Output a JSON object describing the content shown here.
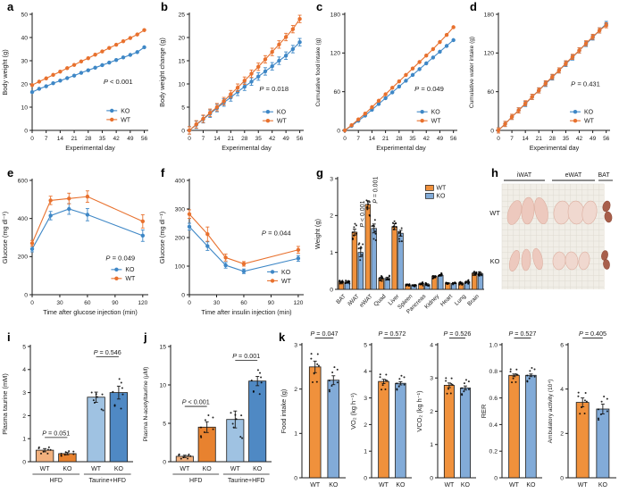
{
  "colors": {
    "wt_orange": "#E8712E",
    "ko_blue": "#3E87C6",
    "bar_wt_orange": "#F0913C",
    "bar_ko_blue": "#82ABD8",
    "hfd_wt_light_orange": "#F2B17E",
    "hfd_ko_orange": "#E8822F",
    "taurine_wt_light_blue": "#9FC2E2",
    "taurine_ko_blue": "#4F89C4",
    "axis": "#1a1a1a"
  },
  "chart_data": [
    {
      "panel": "a",
      "type": "line",
      "xlabel": "Experimental day",
      "ylabel": "Body weight (g)",
      "xlim": [
        0,
        58
      ],
      "ylim": [
        0,
        50
      ],
      "xticks": [
        0,
        7,
        14,
        21,
        28,
        35,
        42,
        49,
        56
      ],
      "yticks": [
        0,
        10,
        20,
        30,
        40,
        50
      ],
      "x": [
        0,
        3.5,
        7,
        10.5,
        14,
        17.5,
        21,
        24.5,
        28,
        31.5,
        35,
        38.5,
        42,
        45.5,
        49,
        52.5,
        56
      ],
      "series": [
        {
          "name": "KO",
          "color": "#3E87C6",
          "err": 0.8,
          "values": [
            16.5,
            17.9,
            19.0,
            20.3,
            21.4,
            22.5,
            23.6,
            24.8,
            25.9,
            27.0,
            28.1,
            29.2,
            30.3,
            31.4,
            32.5,
            33.7,
            35.8
          ]
        },
        {
          "name": "WT",
          "color": "#E8712E",
          "err": 0.8,
          "values": [
            19.5,
            21.0,
            22.4,
            23.9,
            25.3,
            26.8,
            28.2,
            29.7,
            31.1,
            32.6,
            34.0,
            35.5,
            36.9,
            38.4,
            39.8,
            41.3,
            43.2
          ]
        }
      ],
      "p_label": "P < 0.001",
      "p_pos": [
        0.74,
        0.6
      ],
      "legend_pos": [
        0.64,
        0.83
      ]
    },
    {
      "panel": "b",
      "type": "line",
      "xlabel": "Experimental day",
      "ylabel": "Body weight change (g)",
      "xlim": [
        0,
        58
      ],
      "ylim": [
        0,
        25
      ],
      "xticks": [
        0,
        7,
        14,
        21,
        28,
        35,
        42,
        49,
        56
      ],
      "yticks": [
        0,
        5,
        10,
        15,
        20,
        25
      ],
      "x": [
        0,
        3.5,
        7,
        10.5,
        14,
        17.5,
        21,
        24.5,
        28,
        31.5,
        35,
        38.5,
        42,
        45.5,
        49,
        52.5,
        56
      ],
      "series": [
        {
          "name": "KO",
          "color": "#3E87C6",
          "err": 0.8,
          "values": [
            0,
            1.2,
            2.4,
            3.6,
            4.8,
            6.0,
            7.1,
            8.3,
            9.4,
            10.5,
            11.6,
            12.7,
            13.8,
            15.0,
            16.1,
            17.5,
            19.0
          ]
        },
        {
          "name": "WT",
          "color": "#E8712E",
          "err": 0.8,
          "values": [
            0,
            1.3,
            2.5,
            3.8,
            5.0,
            6.3,
            7.8,
            9.2,
            10.7,
            12.2,
            13.7,
            15.3,
            16.9,
            18.5,
            20.1,
            21.8,
            24.0
          ]
        }
      ],
      "p_label": "P = 0.018",
      "p_pos": [
        0.74,
        0.66
      ],
      "legend_pos": [
        0.64,
        0.84
      ]
    },
    {
      "panel": "c",
      "type": "line",
      "xlabel": "Experimental day",
      "ylabel": "Cumulative food intake (g)",
      "xlim": [
        0,
        58
      ],
      "ylim": [
        0,
        180
      ],
      "xticks": [
        0,
        7,
        14,
        21,
        28,
        35,
        42,
        49,
        56
      ],
      "yticks": [
        0,
        60,
        120,
        180
      ],
      "x": [
        0,
        3.5,
        7,
        10.5,
        14,
        17.5,
        21,
        24.5,
        28,
        31.5,
        35,
        38.5,
        42,
        45.5,
        49,
        52.5,
        56
      ],
      "series": [
        {
          "name": "KO",
          "color": "#3E87C6",
          "err": 3,
          "values": [
            0,
            7,
            15,
            23,
            32,
            41,
            50,
            59,
            68,
            77,
            86,
            95,
            104,
            113,
            122,
            131,
            140
          ]
        },
        {
          "name": "WT",
          "color": "#E8712E",
          "err": 3,
          "values": [
            0,
            8,
            17,
            26,
            36,
            46,
            56,
            66,
            76,
            86,
            96,
            106,
            116,
            126,
            137,
            148,
            160
          ]
        }
      ],
      "p_label": "P = 0.049",
      "p_pos": [
        0.75,
        0.66
      ],
      "legend_pos": [
        0.64,
        0.84
      ]
    },
    {
      "panel": "d",
      "type": "line",
      "xlabel": "Experimental day",
      "ylabel": "Cumulative water intake (g)",
      "xlim": [
        0,
        58
      ],
      "ylim": [
        0,
        180
      ],
      "xticks": [
        0,
        7,
        14,
        21,
        28,
        35,
        42,
        49,
        56
      ],
      "yticks": [
        0,
        60,
        120,
        180
      ],
      "x": [
        0,
        3.5,
        7,
        10.5,
        14,
        17.5,
        21,
        24.5,
        28,
        31.5,
        35,
        38.5,
        42,
        45.5,
        49,
        52.5,
        56
      ],
      "series": [
        {
          "name": "KO",
          "color": "#3E87C6",
          "err": 4,
          "values": [
            0,
            10,
            21,
            31,
            41,
            52,
            62,
            72,
            82,
            93,
            103,
            113,
            124,
            134,
            144,
            155,
            165
          ]
        },
        {
          "name": "WT",
          "color": "#E8712E",
          "err": 4,
          "values": [
            0,
            10,
            21,
            31,
            42,
            52,
            62,
            73,
            83,
            93,
            104,
            114,
            124,
            135,
            145,
            155,
            163
          ]
        }
      ],
      "p_label": "P = 0.431",
      "p_pos": [
        0.78,
        0.62
      ],
      "legend_pos": [
        0.64,
        0.84
      ]
    },
    {
      "panel": "e",
      "type": "line",
      "xlabel": "Time after glucose injection (min)",
      "ylabel": "Glucose (mg dl⁻¹)",
      "xlim": [
        0,
        126
      ],
      "ylim": [
        0,
        600
      ],
      "xticks": [
        0,
        30,
        60,
        90,
        120
      ],
      "yticks": [
        0,
        200,
        400,
        600
      ],
      "x": [
        0,
        20,
        40,
        60,
        120
      ],
      "series": [
        {
          "name": "KO",
          "color": "#3E87C6",
          "errs": [
            15,
            22,
            28,
            32,
            30
          ],
          "values": [
            240,
            415,
            450,
            420,
            310
          ]
        },
        {
          "name": "WT",
          "color": "#E8712E",
          "errs": [
            15,
            22,
            28,
            30,
            35
          ],
          "values": [
            270,
            495,
            505,
            515,
            385
          ]
        }
      ],
      "p_label": "P = 0.049",
      "p_pos": [
        0.76,
        0.7
      ],
      "legend_pos": [
        0.68,
        0.78
      ]
    },
    {
      "panel": "f",
      "type": "line",
      "xlabel": "Time after insulin injection (min)",
      "ylabel": "Glucose (mg dl⁻¹)",
      "xlim": [
        0,
        126
      ],
      "ylim": [
        0,
        400
      ],
      "xticks": [
        0,
        30,
        60,
        90,
        120
      ],
      "yticks": [
        0,
        100,
        200,
        300,
        400
      ],
      "x": [
        0,
        20,
        40,
        60,
        120
      ],
      "series": [
        {
          "name": "KO",
          "color": "#3E87C6",
          "errs": [
            12,
            15,
            10,
            8,
            10
          ],
          "values": [
            238,
            170,
            103,
            82,
            127
          ]
        },
        {
          "name": "WT",
          "color": "#E8712E",
          "errs": [
            15,
            25,
            12,
            8,
            12
          ],
          "values": [
            282,
            212,
            130,
            108,
            157
          ]
        }
      ],
      "p_label": "P = 0.044",
      "p_pos": [
        0.76,
        0.48
      ],
      "legend_pos": [
        0.68,
        0.8
      ]
    },
    {
      "panel": "g",
      "type": "bar",
      "ylabel": "Weight (g)",
      "ylim": [
        0,
        3
      ],
      "yticks": [
        0,
        1,
        2,
        3
      ],
      "categories": [
        "BAT",
        "iWAT",
        "eWAT",
        "Quad",
        "Liver",
        "Spleen",
        "Pancreas",
        "Kidney",
        "Heart",
        "Lung",
        "Brain"
      ],
      "series": [
        {
          "name": "WT",
          "color": "#F0913C",
          "values": [
            0.2,
            1.55,
            2.3,
            0.3,
            1.7,
            0.12,
            0.15,
            0.35,
            0.17,
            0.17,
            0.44
          ],
          "errs": [
            0.02,
            0.08,
            0.1,
            0.03,
            0.08,
            0.01,
            0.02,
            0.02,
            0.01,
            0.02,
            0.02
          ]
        },
        {
          "name": "KO",
          "color": "#82ABD8",
          "values": [
            0.2,
            1.0,
            1.65,
            0.3,
            1.52,
            0.1,
            0.13,
            0.38,
            0.16,
            0.2,
            0.42
          ],
          "errs": [
            0.02,
            0.12,
            0.12,
            0.03,
            0.08,
            0.01,
            0.02,
            0.02,
            0.01,
            0.02,
            0.02
          ]
        }
      ],
      "rotate_xlabels": true,
      "vlabels": [
        {
          "cat": 1,
          "label": "P < 0.001"
        },
        {
          "cat": 2,
          "label": "P = 0.001"
        }
      ],
      "legend": {
        "pos": [
          0.6,
          0.1
        ],
        "entries": [
          {
            "name": "WT",
            "color": "#F0913C"
          },
          {
            "name": "KO",
            "color": "#82ABD8"
          }
        ]
      },
      "dots": true
    },
    {
      "panel": "h",
      "type": "photo",
      "columns": [
        "iWAT",
        "eWAT",
        "BAT"
      ],
      "rows": [
        "WT",
        "KO"
      ]
    },
    {
      "panel": "i",
      "type": "bar",
      "ylabel": "Plasma taurine (mM)",
      "ylim": [
        0,
        5
      ],
      "yticks": [
        0,
        1,
        2,
        3,
        4,
        5
      ],
      "bars": [
        {
          "label": "WT",
          "value": 0.5,
          "err": 0.07,
          "color": "#F2B17E"
        },
        {
          "label": "KO",
          "value": 0.35,
          "err": 0.05,
          "color": "#E8822F"
        },
        {
          "label": "WT",
          "value": 2.8,
          "err": 0.22,
          "color": "#9FC2E2"
        },
        {
          "label": "KO",
          "value": 3.0,
          "err": 0.28,
          "color": "#4F89C4"
        }
      ],
      "groups": [
        {
          "label": "HFD",
          "from": 0,
          "to": 1
        },
        {
          "label": "Taurine+HFD",
          "from": 2,
          "to": 3
        }
      ],
      "brackets": [
        {
          "from": 0,
          "to": 1,
          "label": "P = 0.051",
          "y": 1.05
        },
        {
          "from": 2,
          "to": 3,
          "label": "P = 0.546",
          "y": 4.55
        }
      ],
      "dots": true
    },
    {
      "panel": "j",
      "type": "bar",
      "ylabel": "Plasma N-acetyltaurine (μM)",
      "ylim": [
        0,
        15
      ],
      "yticks": [
        0,
        5,
        10,
        15
      ],
      "bars": [
        {
          "label": "WT",
          "value": 0.7,
          "err": 0.15,
          "color": "#F2B17E"
        },
        {
          "label": "KO",
          "value": 4.5,
          "err": 0.7,
          "color": "#E8822F"
        },
        {
          "label": "WT",
          "value": 5.5,
          "err": 1.1,
          "color": "#9FC2E2"
        },
        {
          "label": "KO",
          "value": 10.5,
          "err": 0.6,
          "color": "#4F89C4"
        }
      ],
      "groups": [
        {
          "label": "HFD",
          "from": 0,
          "to": 1
        },
        {
          "label": "Taurine+HFD",
          "from": 2,
          "to": 3
        }
      ],
      "brackets": [
        {
          "from": 0,
          "to": 1,
          "label": "P < 0.001",
          "y": 7.2
        },
        {
          "from": 2,
          "to": 3,
          "label": "P = 0.001",
          "y": 13.2
        }
      ],
      "dots": true
    },
    {
      "panel": "k",
      "type": "bar",
      "ylabel": "Food intake (g)",
      "ylim": [
        0,
        3
      ],
      "yticks": [
        0,
        1,
        2,
        3
      ],
      "bars": [
        {
          "label": "WT",
          "value": 2.5,
          "err": 0.13,
          "color": "#F0913C"
        },
        {
          "label": "KO",
          "value": 2.2,
          "err": 0.1,
          "color": "#82ABD8"
        }
      ],
      "brackets": [
        {
          "from": 0,
          "to": 1,
          "label": "P = 0.047",
          "y": 3.15
        }
      ],
      "dots": true
    },
    {
      "panel": "",
      "type": "bar",
      "ylabel": "VO₂ (kg h⁻¹)",
      "ylim": [
        0,
        5
      ],
      "yticks": [
        0,
        1,
        2,
        3,
        4,
        5
      ],
      "bars": [
        {
          "label": "WT",
          "value": 3.62,
          "err": 0.08,
          "color": "#F0913C"
        },
        {
          "label": "KO",
          "value": 3.55,
          "err": 0.06,
          "color": "#82ABD8"
        }
      ],
      "brackets": [
        {
          "from": 0,
          "to": 1,
          "label": "P = 0.572",
          "y": 5.25
        }
      ],
      "dots": true
    },
    {
      "panel": "",
      "type": "bar",
      "ylabel": "VCO₂ (kg h⁻¹)",
      "ylim": [
        0,
        4
      ],
      "yticks": [
        0,
        1,
        2,
        3,
        4
      ],
      "bars": [
        {
          "label": "WT",
          "value": 2.78,
          "err": 0.07,
          "color": "#F0913C"
        },
        {
          "label": "KO",
          "value": 2.7,
          "err": 0.06,
          "color": "#82ABD8"
        }
      ],
      "brackets": [
        {
          "from": 0,
          "to": 1,
          "label": "P = 0.526",
          "y": 4.2
        }
      ],
      "dots": true
    },
    {
      "panel": "",
      "type": "bar",
      "ylabel": "RER",
      "ylim": [
        0,
        1
      ],
      "yticks": [
        0,
        0.2,
        0.4,
        0.6,
        0.8,
        1.0
      ],
      "ytick_labels": [
        "0",
        "0.2",
        "0.4",
        "0.6",
        "0.8",
        "1.0"
      ],
      "bars": [
        {
          "label": "WT",
          "value": 0.77,
          "err": 0.01,
          "color": "#F0913C"
        },
        {
          "label": "KO",
          "value": 0.77,
          "err": 0.01,
          "color": "#82ABD8"
        }
      ],
      "brackets": [
        {
          "from": 0,
          "to": 1,
          "label": "P = 0.527",
          "y": 1.05
        }
      ],
      "dots": true
    },
    {
      "panel": "",
      "type": "bar",
      "ylabel": "Ambulatory activity (10⁴)",
      "ylim": [
        0,
        6
      ],
      "yticks": [
        0,
        2,
        4,
        6
      ],
      "bars": [
        {
          "label": "WT",
          "value": 3.4,
          "err": 0.2,
          "color": "#F0913C"
        },
        {
          "label": "KO",
          "value": 3.1,
          "err": 0.22,
          "color": "#82ABD8"
        }
      ],
      "brackets": [
        {
          "from": 0,
          "to": 1,
          "label": "P = 0.405",
          "y": 6.3
        }
      ],
      "dots": true
    }
  ]
}
